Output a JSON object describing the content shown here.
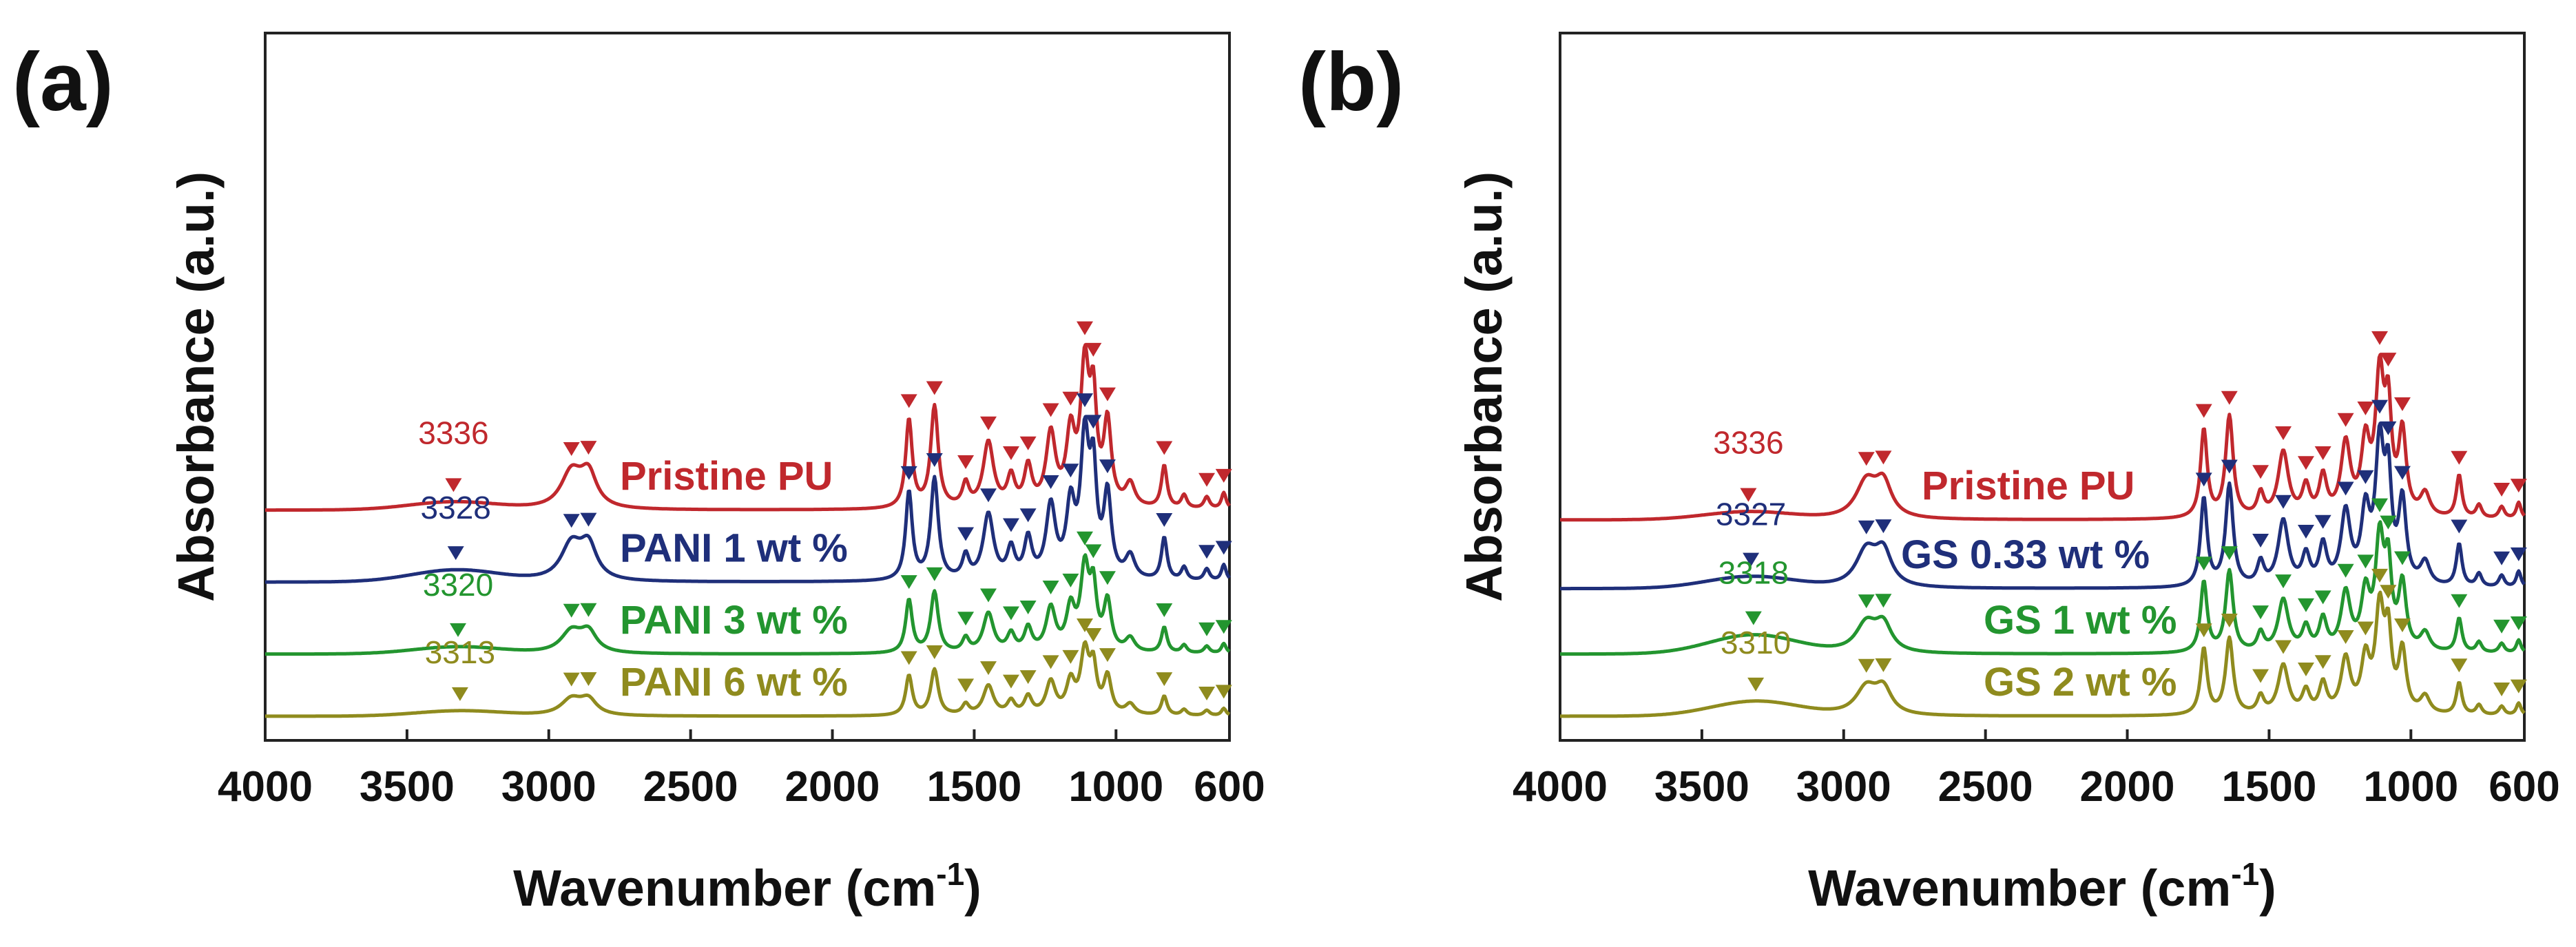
{
  "chart_data": [
    {
      "type": "line",
      "panel_label": "(a)",
      "xlabel": "Wavenumber (cm",
      "xlabel_sup": "-1",
      "xlabel_close": ")",
      "ylabel": "Absorbance (a.u.)",
      "xlim": [
        4000,
        600
      ],
      "x_reversed": true,
      "xticks": [
        4000,
        3500,
        3000,
        2500,
        2000,
        1500,
        1000,
        600
      ],
      "yticks": [],
      "grid": false,
      "legend": "labels beside each curve",
      "series": [
        {
          "name": "Pristine PU",
          "color": "#c0282d",
          "oh_peak_label": "3336",
          "oh_peak_x": 3336,
          "offset": 3.15,
          "scale": 1.0,
          "broad": 0.02
        },
        {
          "name": "PANI 1 wt %",
          "color": "#1f2f7a",
          "oh_peak_label": "3328",
          "oh_peak_x": 3328,
          "offset": 2.05,
          "scale": 1.0,
          "broad": 0.03
        },
        {
          "name": "PANI 3 wt %",
          "color": "#23952f",
          "oh_peak_label": "3320",
          "oh_peak_x": 3320,
          "offset": 0.95,
          "scale": 0.6,
          "broad": 0.03
        },
        {
          "name": "PANI 6 wt %",
          "color": "#8f8b1e",
          "oh_peak_label": "3313",
          "oh_peak_x": 3313,
          "offset": 0.0,
          "scale": 0.45,
          "broad": 0.03
        }
      ],
      "marker_wavenumbers": [
        2920,
        2860,
        1730,
        1640,
        1530,
        1450,
        1370,
        1310,
        1230,
        1160,
        1110,
        1080,
        1030,
        830,
        680,
        620
      ]
    },
    {
      "type": "line",
      "panel_label": "(b)",
      "xlabel": "Wavenumber (cm",
      "xlabel_sup": "-1",
      "xlabel_close": ")",
      "ylabel": "Absorbance (a.u.)",
      "xlim": [
        4000,
        600
      ],
      "x_reversed": true,
      "xticks": [
        4000,
        3500,
        3000,
        2500,
        2000,
        1500,
        1000,
        600
      ],
      "yticks": [],
      "grid": false,
      "legend": "labels beside each curve",
      "series": [
        {
          "name": "Pristine PU",
          "color": "#c0282d",
          "oh_peak_label": "3336",
          "oh_peak_x": 3336,
          "offset": 3.0,
          "scale": 1.0,
          "broad": 0.02
        },
        {
          "name": "GS 0.33 wt %",
          "color": "#1f2f7a",
          "oh_peak_label": "3327",
          "oh_peak_x": 3327,
          "offset": 1.95,
          "scale": 1.0,
          "broad": 0.03
        },
        {
          "name": "GS 1 wt %",
          "color": "#23952f",
          "oh_peak_label": "3318",
          "oh_peak_x": 3318,
          "offset": 0.95,
          "scale": 0.8,
          "broad": 0.06
        },
        {
          "name": "GS 2 wt %",
          "color": "#8f8b1e",
          "oh_peak_label": "3310",
          "oh_peak_x": 3310,
          "offset": 0.0,
          "scale": 0.75,
          "broad": 0.05
        }
      ],
      "marker_wavenumbers": [
        2920,
        2860,
        1730,
        1640,
        1530,
        1450,
        1370,
        1310,
        1230,
        1160,
        1110,
        1080,
        1030,
        830,
        680,
        620
      ]
    }
  ]
}
